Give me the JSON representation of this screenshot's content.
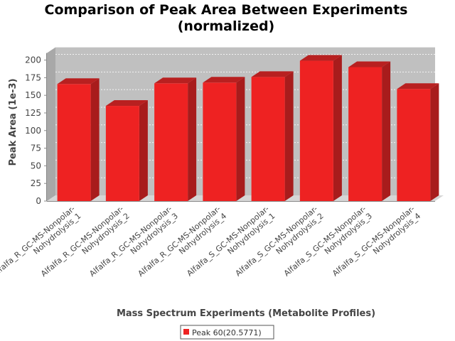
{
  "chart_data": {
    "type": "bar",
    "title_lines": [
      "Comparison of Peak Area Between Experiments",
      "(normalized)"
    ],
    "xlabel": "Mass Spectrum Experiments (Metabolite Profiles)",
    "ylabel": "Peak Area (1e-3)",
    "ylim": [
      0,
      210
    ],
    "yticks": [
      0,
      25,
      50,
      75,
      100,
      125,
      150,
      175,
      200
    ],
    "grid": true,
    "legend_position": "bottom",
    "categories": [
      [
        "Alfalfa_R_GC-MS-Nonpolar-",
        "Nohydrolysis_1"
      ],
      [
        "Alfalfa_R_GC-MS-Nonpolar-",
        "Nohydrolysis_2"
      ],
      [
        "Alfalfa_R_GC-MS-Nonpolar-",
        "Nohydrolysis_3"
      ],
      [
        "Alfalfa_R_GC-MS-Nonpolar-",
        "Nohydrolysis_4"
      ],
      [
        "Alfalfa_S_GC-MS-Nonpolar-",
        "Nohydrolysis_1"
      ],
      [
        "Alfalfa_S_GC-MS-Nonpolar-",
        "Nohydrolysis_2"
      ],
      [
        "Alfalfa_S_GC-MS-Nonpolar-",
        "Nohydrolysis_3"
      ],
      [
        "Alfalfa_S_GC-MS-Nonpolar-",
        "Nohydrolysis_4"
      ]
    ],
    "series": [
      {
        "name": "Peak 60(20.5771)",
        "color": "#ee2222",
        "values": [
          166,
          135,
          167,
          168,
          176,
          199,
          190,
          159
        ]
      }
    ]
  },
  "colors": {
    "plot_background": "#c0c0c0",
    "plot_side": "#a8a8a8",
    "bar_front": "#ee2222",
    "bar_top": "#b82020",
    "bar_side": "#a81c1c"
  }
}
